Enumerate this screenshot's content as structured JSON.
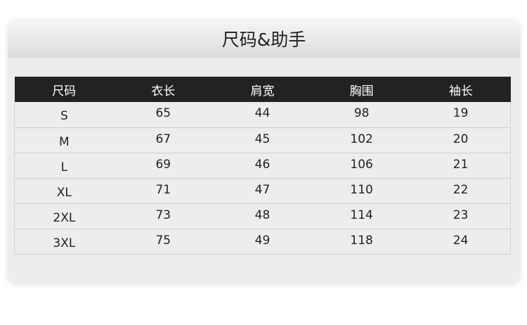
{
  "title": "尺码&助手",
  "table": {
    "headers": [
      "尺码",
      "衣长",
      "肩宽",
      "胸围",
      "袖长"
    ],
    "rows": [
      [
        "S",
        "65",
        "44",
        "98",
        "19"
      ],
      [
        "M",
        "67",
        "45",
        "102",
        "20"
      ],
      [
        "L",
        "69",
        "46",
        "106",
        "21"
      ],
      [
        "XL",
        "71",
        "47",
        "110",
        "22"
      ],
      [
        "2XL",
        "73",
        "48",
        "114",
        "23"
      ],
      [
        "3XL",
        "75",
        "49",
        "118",
        "24"
      ]
    ]
  }
}
